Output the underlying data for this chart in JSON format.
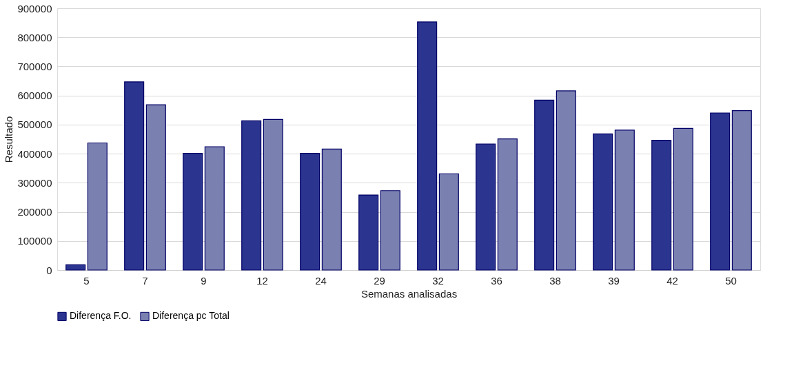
{
  "chart_data": {
    "type": "bar",
    "xlabel": "Semanas analisadas",
    "ylabel": "Resultado",
    "categories": [
      "5",
      "7",
      "9",
      "12",
      "24",
      "29",
      "32",
      "36",
      "38",
      "39",
      "42",
      "50"
    ],
    "series": [
      {
        "name": "Diferença F.O.",
        "color": "#2b3590",
        "values": [
          18000,
          647000,
          401000,
          513000,
          401000,
          258000,
          853000,
          433000,
          584000,
          468000,
          446000,
          540000
        ]
      },
      {
        "name": "Diferença pc Total",
        "color": "#7a80b0",
        "values": [
          437000,
          568000,
          424000,
          518000,
          416000,
          273000,
          331000,
          451000,
          616000,
          481000,
          487000,
          548000
        ]
      }
    ],
    "ylim": [
      0,
      900000
    ],
    "yticks": [
      0,
      100000,
      200000,
      300000,
      400000,
      500000,
      600000,
      700000,
      800000,
      900000
    ],
    "grid": "y",
    "legend": "bottom"
  }
}
